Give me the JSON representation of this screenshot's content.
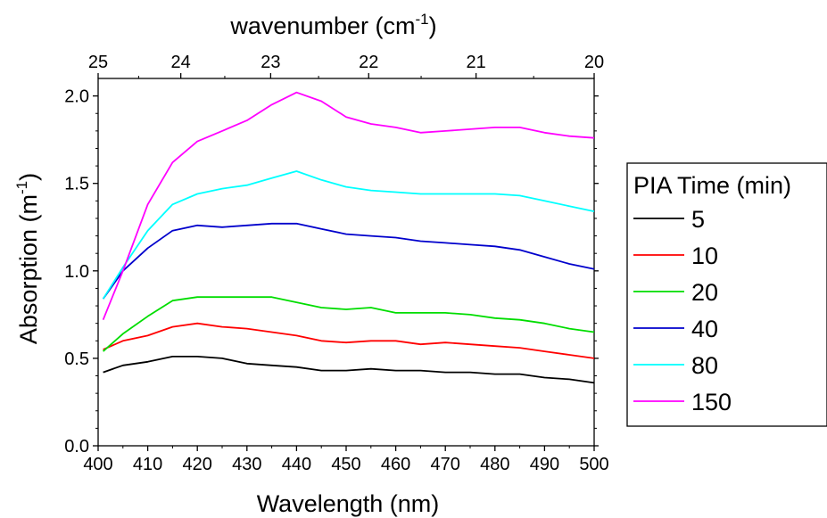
{
  "chart_data": {
    "type": "line",
    "xlabel": "Wavelength (nm)",
    "ylabel": {
      "main": "Absorption (m",
      "sup": "-1",
      "close": ")"
    },
    "top_axis_label": {
      "main": "wavenumber (cm",
      "sup": "-1",
      "close": ")"
    },
    "xlim": [
      400,
      500
    ],
    "ylim": [
      0.0,
      2.1
    ],
    "x_ticks": [
      "400",
      "410",
      "420",
      "430",
      "440",
      "450",
      "460",
      "470",
      "480",
      "490",
      "500"
    ],
    "x_tick_values": [
      400,
      410,
      420,
      430,
      440,
      450,
      460,
      470,
      480,
      490,
      500
    ],
    "y_ticks": [
      "0.0",
      "0.5",
      "1.0",
      "1.5",
      "2.0"
    ],
    "y_tick_values": [
      0.0,
      0.5,
      1.0,
      1.5,
      2.0
    ],
    "top_ticks": [
      "25",
      "24",
      "23",
      "22",
      "21",
      "20"
    ],
    "top_tick_values": [
      25,
      24,
      23,
      22,
      21,
      20
    ],
    "legend": {
      "title": "PIA Time (min)",
      "placement": "right, outside plot"
    },
    "grid": false,
    "x": [
      401,
      405,
      410,
      415,
      420,
      425,
      430,
      435,
      440,
      445,
      450,
      455,
      460,
      465,
      470,
      475,
      480,
      485,
      490,
      495,
      500
    ],
    "series": [
      {
        "name": "5",
        "color": "#000000",
        "values": [
          0.42,
          0.46,
          0.48,
          0.51,
          0.51,
          0.5,
          0.47,
          0.46,
          0.45,
          0.43,
          0.43,
          0.44,
          0.43,
          0.43,
          0.42,
          0.42,
          0.41,
          0.41,
          0.39,
          0.38,
          0.36
        ]
      },
      {
        "name": "10",
        "color": "#ff0000",
        "values": [
          0.55,
          0.6,
          0.63,
          0.68,
          0.7,
          0.68,
          0.67,
          0.65,
          0.63,
          0.6,
          0.59,
          0.6,
          0.6,
          0.58,
          0.59,
          0.58,
          0.57,
          0.56,
          0.54,
          0.52,
          0.5
        ]
      },
      {
        "name": "20",
        "color": "#00dd00",
        "values": [
          0.54,
          0.64,
          0.74,
          0.83,
          0.85,
          0.85,
          0.85,
          0.85,
          0.82,
          0.79,
          0.78,
          0.79,
          0.76,
          0.76,
          0.76,
          0.75,
          0.73,
          0.72,
          0.7,
          0.67,
          0.65
        ]
      },
      {
        "name": "40",
        "color": "#0000cc",
        "values": [
          0.84,
          1.0,
          1.13,
          1.23,
          1.26,
          1.25,
          1.26,
          1.27,
          1.27,
          1.24,
          1.21,
          1.2,
          1.19,
          1.17,
          1.16,
          1.15,
          1.14,
          1.12,
          1.08,
          1.04,
          1.01
        ]
      },
      {
        "name": "80",
        "color": "#00ffff",
        "values": [
          0.84,
          1.02,
          1.23,
          1.38,
          1.44,
          1.47,
          1.49,
          1.53,
          1.57,
          1.52,
          1.48,
          1.46,
          1.45,
          1.44,
          1.44,
          1.44,
          1.44,
          1.43,
          1.4,
          1.37,
          1.34
        ]
      },
      {
        "name": "150",
        "color": "#ff00ff",
        "values": [
          0.72,
          1.0,
          1.38,
          1.62,
          1.74,
          1.8,
          1.86,
          1.95,
          2.02,
          1.97,
          1.88,
          1.84,
          1.82,
          1.79,
          1.8,
          1.81,
          1.82,
          1.82,
          1.79,
          1.77,
          1.76
        ]
      }
    ]
  }
}
